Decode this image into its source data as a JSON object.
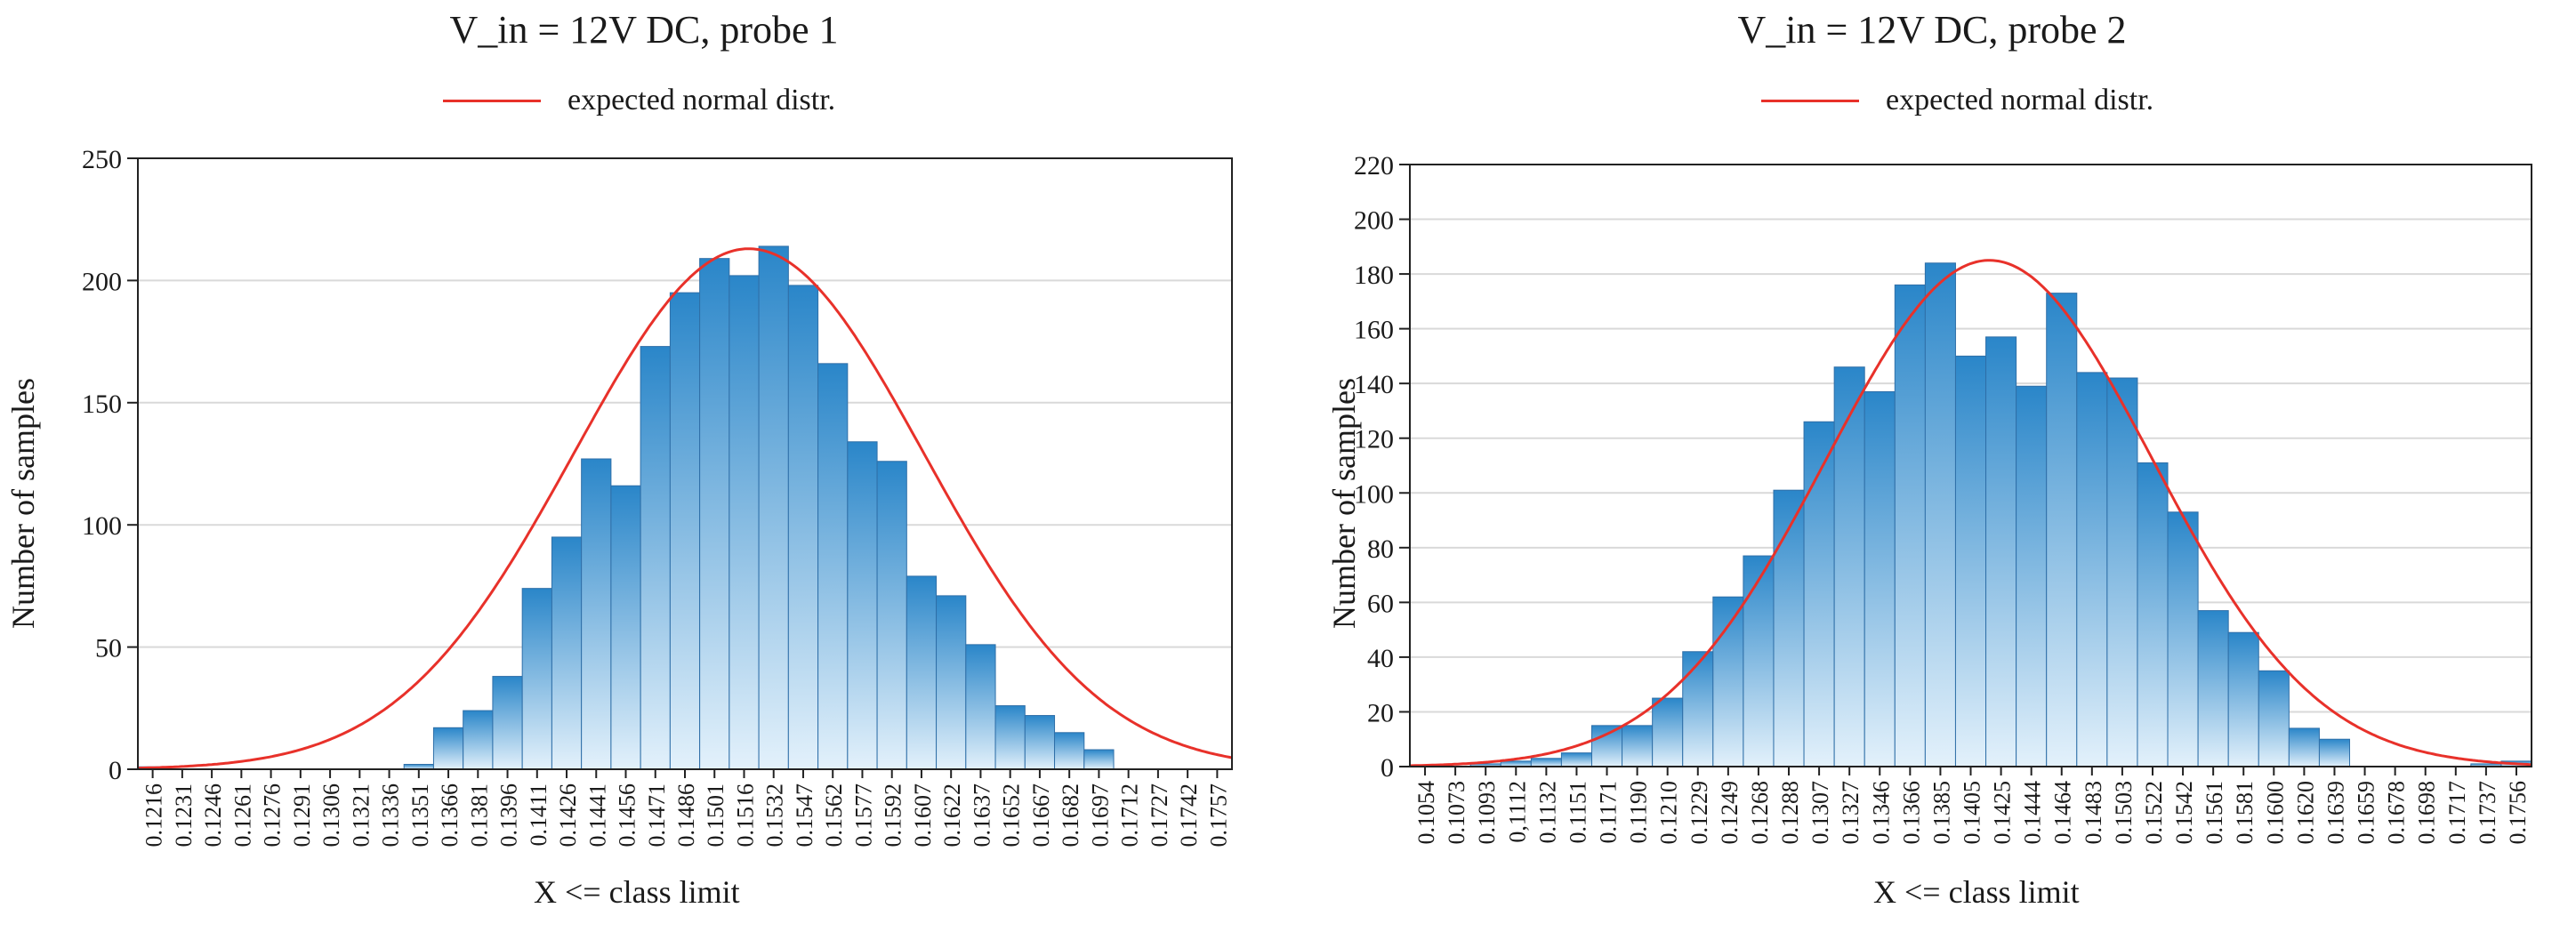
{
  "charts": [
    {
      "title": "V_in = 12V DC, probe 1",
      "legend": {
        "label": "expected normal distr.",
        "color": "#e8312a"
      },
      "chart_data": {
        "type": "bar",
        "categories": [
          "0.1216",
          "0.1231",
          "0.1246",
          "0.1261",
          "0.1276",
          "0.1291",
          "0.1306",
          "0.1321",
          "0.1336",
          "0.1351",
          "0.1366",
          "0.1381",
          "0.1396",
          "0.1411",
          "0.1426",
          "0.1441",
          "0.1456",
          "0.1471",
          "0.1486",
          "0.1501",
          "0.1516",
          "0.1532",
          "0.1547",
          "0.1562",
          "0.1577",
          "0.1592",
          "0.1607",
          "0.1622",
          "0.1637",
          "0.1652",
          "0.1667",
          "0.1682",
          "0.1697",
          "0.1712",
          "0.1727",
          "0.1742",
          "0.1757"
        ],
        "values": [
          1,
          0,
          0,
          0,
          0,
          0,
          0,
          0,
          0,
          2,
          17,
          24,
          38,
          74,
          95,
          127,
          116,
          173,
          195,
          209,
          202,
          214,
          198,
          166,
          134,
          126,
          79,
          71,
          51,
          26,
          22,
          15,
          8,
          0,
          0,
          0,
          0
        ],
        "series": [
          {
            "name": "expected normal distr.",
            "mean": 0.1519,
            "sd": 0.0089,
            "peak": 213
          }
        ],
        "xlabel": "X <= class limit",
        "ylabel": "Number of samples",
        "ylim": [
          0,
          250
        ],
        "yticks": [
          0,
          50,
          100,
          150,
          200,
          250
        ],
        "grid": true,
        "legend_position": "top-center"
      }
    },
    {
      "title": "V_in = 12V DC, probe 2",
      "legend": {
        "label": "expected normal distr.",
        "color": "#e8312a"
      },
      "chart_data": {
        "type": "bar",
        "categories": [
          "0.1054",
          "0.1073",
          "0.1093",
          "0,1112",
          "0.1132",
          "0.1151",
          "0.1171",
          "0.1190",
          "0.1210",
          "0.1229",
          "0.1249",
          "0.1268",
          "0.1288",
          "0.1307",
          "0.1327",
          "0.1346",
          "0.1366",
          "0.1385",
          "0.1405",
          "0.1425",
          "0.1444",
          "0.1464",
          "0.1483",
          "0.1503",
          "0.1522",
          "0.1542",
          "0.1561",
          "0.1581",
          "0.1600",
          "0.1620",
          "0.1639",
          "0.1659",
          "0.1678",
          "0.1698",
          "0.1717",
          "0.1737",
          "0.1756"
        ],
        "values": [
          0,
          0,
          1,
          2,
          3,
          5,
          15,
          15,
          25,
          42,
          62,
          77,
          101,
          126,
          146,
          137,
          176,
          184,
          150,
          157,
          139,
          173,
          144,
          142,
          111,
          93,
          57,
          49,
          35,
          14,
          10,
          0,
          0,
          0,
          0,
          1,
          2
        ],
        "series": [
          {
            "name": "expected normal distr.",
            "mean": 0.1417,
            "sd": 0.0105,
            "peak": 185
          }
        ],
        "xlabel": "X <= class limit",
        "ylabel": "Number of samples",
        "ylim": [
          0,
          220
        ],
        "yticks": [
          0,
          20,
          40,
          60,
          80,
          100,
          120,
          140,
          160,
          180,
          200,
          220
        ],
        "grid": true,
        "legend_position": "top-center"
      }
    }
  ],
  "colors": {
    "bar_top": "#2a86c9",
    "bar_bottom": "#e3f1fb",
    "bar_edge": "#2f6fa8",
    "curve": "#e8312a",
    "grid": "#d9d9d9",
    "axis": "#222222"
  }
}
